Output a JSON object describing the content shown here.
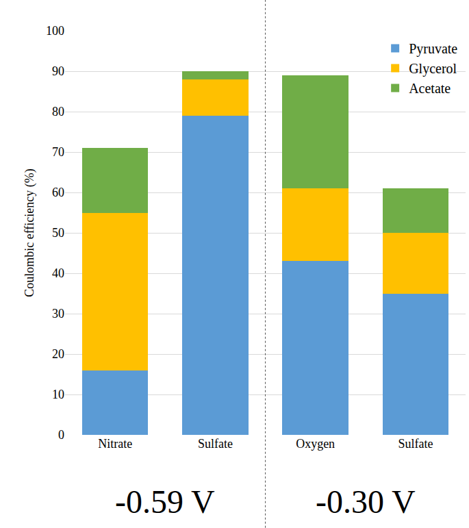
{
  "chart_data": {
    "type": "bar",
    "stacked": true,
    "y_label": "Coulombic efficiency (%)",
    "categories": [
      "Nitrate",
      "Sulfate",
      "Oxygen",
      "Sulfate"
    ],
    "groups": [
      {
        "label": "-0.59 V",
        "members": [
          "Nitrate",
          "Sulfate"
        ]
      },
      {
        "label": "-0.30 V",
        "members": [
          "Oxygen",
          "Sulfate"
        ]
      }
    ],
    "series": [
      {
        "name": "Pyruvate",
        "color": "#5B9BD5",
        "values": [
          16,
          79,
          43,
          35
        ]
      },
      {
        "name": "Glycerol",
        "color": "#FFC000",
        "values": [
          39,
          9,
          18,
          15
        ]
      },
      {
        "name": "Acetate",
        "color": "#70AD47",
        "values": [
          16,
          2,
          28,
          11
        ]
      }
    ],
    "ylim": [
      0,
      100
    ],
    "yticks": [
      0,
      10,
      20,
      30,
      40,
      50,
      60,
      70,
      80,
      90,
      100
    ],
    "grid": true,
    "legend": "upper right"
  }
}
